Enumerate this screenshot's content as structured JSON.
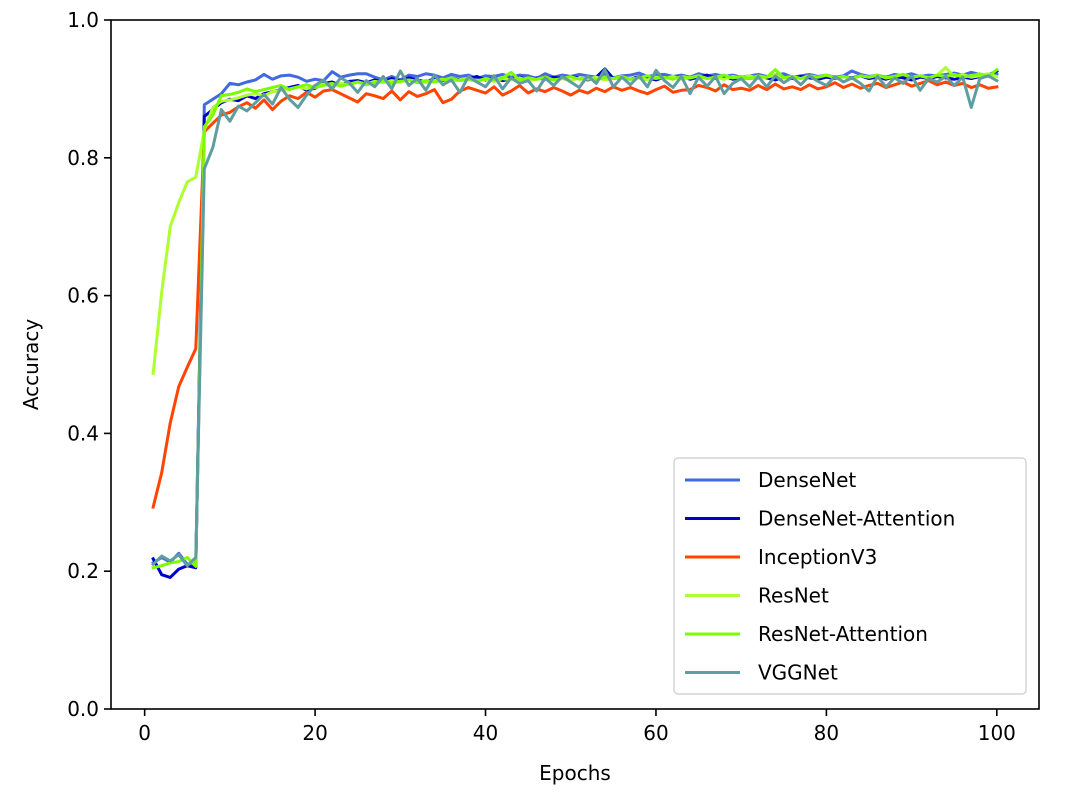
{
  "chart_data": {
    "type": "line",
    "xlabel": "Epochs",
    "ylabel": "Accuracy",
    "xlim": [
      -3.95,
      104.95
    ],
    "ylim": [
      0.0,
      1.0
    ],
    "xticks": [
      0,
      20,
      40,
      60,
      80,
      100
    ],
    "yticks": [
      0.0,
      0.2,
      0.4,
      0.6,
      0.8,
      1.0
    ],
    "xtick_labels": [
      "0",
      "20",
      "40",
      "60",
      "80",
      "100"
    ],
    "ytick_labels": [
      "0.0",
      "0.2",
      "0.4",
      "0.6",
      "0.8",
      "1.0"
    ],
    "grid": false,
    "legend_position": "lower-right",
    "series": [
      {
        "name": "DenseNet",
        "color": "#4169e1",
        "y": [
          0.212,
          0.22,
          0.213,
          0.226,
          0.21,
          0.208,
          0.877,
          0.885,
          0.893,
          0.908,
          0.906,
          0.91,
          0.913,
          0.921,
          0.914,
          0.919,
          0.92,
          0.917,
          0.911,
          0.914,
          0.912,
          0.925,
          0.917,
          0.92,
          0.922,
          0.922,
          0.917,
          0.913,
          0.918,
          0.913,
          0.92,
          0.918,
          0.922,
          0.92,
          0.916,
          0.921,
          0.918,
          0.92,
          0.915,
          0.919,
          0.918,
          0.921,
          0.917,
          0.92,
          0.919,
          0.915,
          0.922,
          0.917,
          0.92,
          0.918,
          0.921,
          0.919,
          0.917,
          0.922,
          0.916,
          0.919,
          0.92,
          0.923,
          0.918,
          0.92,
          0.921,
          0.918,
          0.92,
          0.917,
          0.922,
          0.919,
          0.921,
          0.918,
          0.92,
          0.917,
          0.919,
          0.921,
          0.918,
          0.92,
          0.922,
          0.917,
          0.919,
          0.921,
          0.918,
          0.92,
          0.917,
          0.919,
          0.926,
          0.921,
          0.918,
          0.92,
          0.917,
          0.921,
          0.919,
          0.922,
          0.918,
          0.92,
          0.919,
          0.921,
          0.923,
          0.92,
          0.924,
          0.921,
          0.919,
          0.922
        ]
      },
      {
        "name": "DenseNet-Attention",
        "color": "#0000cd",
        "y": [
          0.218,
          0.195,
          0.191,
          0.203,
          0.208,
          0.205,
          0.86,
          0.87,
          0.88,
          0.885,
          0.883,
          0.89,
          0.886,
          0.893,
          0.896,
          0.899,
          0.902,
          0.905,
          0.898,
          0.901,
          0.908,
          0.91,
          0.905,
          0.911,
          0.912,
          0.909,
          0.913,
          0.91,
          0.915,
          0.911,
          0.916,
          0.913,
          0.91,
          0.915,
          0.912,
          0.916,
          0.913,
          0.915,
          0.918,
          0.913,
          0.916,
          0.912,
          0.915,
          0.917,
          0.913,
          0.916,
          0.914,
          0.917,
          0.915,
          0.918,
          0.916,
          0.913,
          0.917,
          0.929,
          0.915,
          0.917,
          0.914,
          0.918,
          0.916,
          0.913,
          0.917,
          0.915,
          0.918,
          0.914,
          0.917,
          0.92,
          0.915,
          0.918,
          0.914,
          0.917,
          0.915,
          0.918,
          0.916,
          0.913,
          0.917,
          0.915,
          0.918,
          0.916,
          0.914,
          0.917,
          0.915,
          0.918,
          0.916,
          0.919,
          0.915,
          0.917,
          0.914,
          0.918,
          0.916,
          0.913,
          0.917,
          0.915,
          0.918,
          0.916,
          0.914,
          0.917,
          0.915,
          0.918,
          0.92,
          0.926
        ]
      },
      {
        "name": "InceptionV3",
        "color": "#ff4500",
        "y": [
          0.293,
          0.343,
          0.415,
          0.468,
          0.496,
          0.523,
          0.838,
          0.85,
          0.862,
          0.866,
          0.874,
          0.88,
          0.872,
          0.884,
          0.87,
          0.882,
          0.89,
          0.886,
          0.895,
          0.888,
          0.897,
          0.899,
          0.893,
          0.887,
          0.881,
          0.893,
          0.89,
          0.886,
          0.897,
          0.884,
          0.896,
          0.889,
          0.893,
          0.899,
          0.88,
          0.885,
          0.897,
          0.902,
          0.898,
          0.894,
          0.903,
          0.891,
          0.897,
          0.905,
          0.894,
          0.9,
          0.896,
          0.902,
          0.897,
          0.891,
          0.898,
          0.894,
          0.901,
          0.896,
          0.903,
          0.898,
          0.902,
          0.897,
          0.893,
          0.899,
          0.904,
          0.895,
          0.898,
          0.899,
          0.905,
          0.902,
          0.897,
          0.906,
          0.899,
          0.901,
          0.898,
          0.905,
          0.899,
          0.907,
          0.9,
          0.903,
          0.899,
          0.906,
          0.9,
          0.903,
          0.909,
          0.902,
          0.907,
          0.901,
          0.905,
          0.908,
          0.902,
          0.906,
          0.91,
          0.904,
          0.908,
          0.912,
          0.906,
          0.91,
          0.905,
          0.908,
          0.902,
          0.906,
          0.901,
          0.903
        ]
      },
      {
        "name": "ResNet",
        "color": "#adff2f",
        "y": [
          0.487,
          0.605,
          0.7,
          0.735,
          0.765,
          0.772,
          0.84,
          0.873,
          0.882,
          0.884,
          0.887,
          0.891,
          0.893,
          0.89,
          0.896,
          0.898,
          0.9,
          0.903,
          0.9,
          0.905,
          0.907,
          0.904,
          0.908,
          0.906,
          0.91,
          0.907,
          0.911,
          0.909,
          0.912,
          0.91,
          0.913,
          0.911,
          0.909,
          0.912,
          0.914,
          0.911,
          0.913,
          0.915,
          0.912,
          0.914,
          0.911,
          0.915,
          0.913,
          0.916,
          0.912,
          0.914,
          0.917,
          0.913,
          0.915,
          0.912,
          0.916,
          0.914,
          0.917,
          0.913,
          0.915,
          0.918,
          0.914,
          0.916,
          0.913,
          0.917,
          0.915,
          0.918,
          0.914,
          0.916,
          0.919,
          0.915,
          0.917,
          0.914,
          0.918,
          0.916,
          0.919,
          0.915,
          0.917,
          0.92,
          0.916,
          0.918,
          0.915,
          0.919,
          0.917,
          0.92,
          0.916,
          0.918,
          0.915,
          0.919,
          0.917,
          0.92,
          0.916,
          0.918,
          0.921,
          0.917,
          0.919,
          0.916,
          0.92,
          0.931,
          0.918,
          0.921,
          0.917,
          0.919,
          0.922,
          0.918
        ]
      },
      {
        "name": "ResNet-Attention",
        "color": "#7cfc00",
        "y": [
          0.205,
          0.208,
          0.212,
          0.214,
          0.22,
          0.207,
          0.845,
          0.862,
          0.89,
          0.892,
          0.895,
          0.9,
          0.896,
          0.899,
          0.902,
          0.905,
          0.899,
          0.903,
          0.906,
          0.902,
          0.905,
          0.908,
          0.904,
          0.907,
          0.91,
          0.906,
          0.909,
          0.912,
          0.908,
          0.911,
          0.913,
          0.909,
          0.912,
          0.91,
          0.913,
          0.916,
          0.912,
          0.914,
          0.911,
          0.915,
          0.913,
          0.916,
          0.924,
          0.913,
          0.916,
          0.914,
          0.917,
          0.913,
          0.915,
          0.918,
          0.914,
          0.916,
          0.913,
          0.917,
          0.915,
          0.918,
          0.914,
          0.916,
          0.919,
          0.915,
          0.917,
          0.914,
          0.918,
          0.916,
          0.919,
          0.915,
          0.917,
          0.92,
          0.916,
          0.918,
          0.915,
          0.919,
          0.917,
          0.928,
          0.916,
          0.918,
          0.915,
          0.919,
          0.917,
          0.92,
          0.916,
          0.918,
          0.915,
          0.919,
          0.917,
          0.92,
          0.916,
          0.918,
          0.921,
          0.917,
          0.919,
          0.916,
          0.92,
          0.918,
          0.921,
          0.917,
          0.919,
          0.922,
          0.918,
          0.928
        ]
      },
      {
        "name": "VGGNet",
        "color": "#5f9ea0",
        "y": [
          0.21,
          0.222,
          0.215,
          0.224,
          0.208,
          0.22,
          0.784,
          0.815,
          0.87,
          0.853,
          0.875,
          0.868,
          0.88,
          0.892,
          0.878,
          0.902,
          0.885,
          0.873,
          0.891,
          0.905,
          0.913,
          0.9,
          0.916,
          0.909,
          0.895,
          0.912,
          0.903,
          0.918,
          0.9,
          0.926,
          0.905,
          0.915,
          0.898,
          0.92,
          0.906,
          0.913,
          0.895,
          0.918,
          0.91,
          0.903,
          0.919,
          0.9,
          0.916,
          0.908,
          0.912,
          0.897,
          0.916,
          0.905,
          0.918,
          0.91,
          0.902,
          0.919,
          0.908,
          0.928,
          0.903,
          0.917,
          0.906,
          0.919,
          0.903,
          0.927,
          0.912,
          0.902,
          0.918,
          0.893,
          0.917,
          0.904,
          0.918,
          0.893,
          0.908,
          0.915,
          0.903,
          0.918,
          0.903,
          0.919,
          0.909,
          0.917,
          0.906,
          0.919,
          0.911,
          0.905,
          0.918,
          0.91,
          0.916,
          0.908,
          0.897,
          0.918,
          0.903,
          0.916,
          0.908,
          0.919,
          0.898,
          0.915,
          0.91,
          0.918,
          0.905,
          0.917,
          0.873,
          0.915,
          0.919,
          0.912
        ]
      }
    ]
  }
}
